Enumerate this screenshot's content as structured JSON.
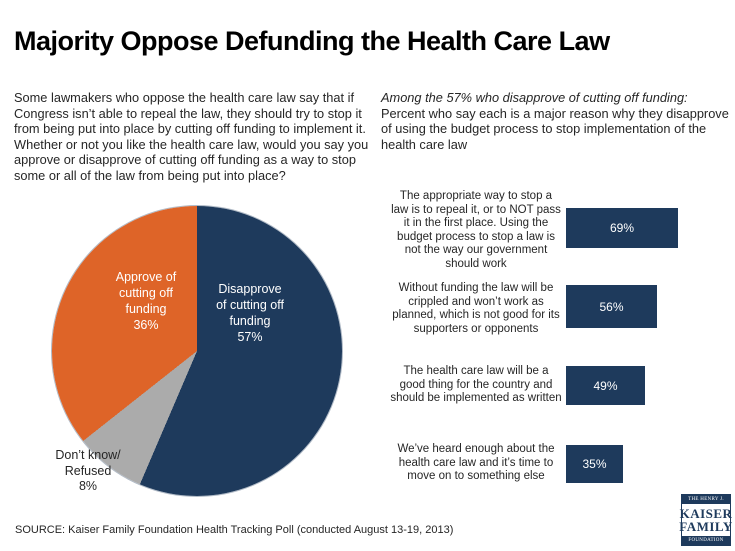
{
  "title": "Majority Oppose Defunding the Health Care Law",
  "question_text": "Some lawmakers who oppose the health care law say that if Congress isn’t able to repeal the law, they should try to stop it from being put into place by cutting off funding to implement it. Whether or not you like the health care law, would you say you approve or disapprove of cutting off funding as a way to stop some or all of the law from being put into place?",
  "subtitle": {
    "italic_lead": "Among the 57% who disapprove of cutting off funding:",
    "rest": " Percent who say each is a major reason why they disapprove of using the budget process to stop implementation of the health care law"
  },
  "pie_labels": {
    "approve": "Approve of\ncutting off\nfunding\n36%",
    "disapprove": "Disapprove\nof cutting off\nfunding\n57%",
    "dont_know": "Don’t know/\nRefused\n8%"
  },
  "reasons": [
    {
      "text": "The appropriate way to stop a law is to repeal it, or to NOT pass it in the first place. Using the budget process to stop a law is not the way our government should work",
      "value_label": "69%"
    },
    {
      "text": "Without funding the law will be crippled and won’t work as planned, which is not good for its supporters or opponents",
      "value_label": "56%"
    },
    {
      "text": "The health care law will be a good thing for the country and should be implemented as written",
      "value_label": "49%"
    },
    {
      "text": "We’ve heard enough about the health care law and it’s time to move on to something else",
      "value_label": "35%"
    }
  ],
  "source": "SOURCE: Kaiser Family Foundation Health Tracking Poll (conducted August 13-19, 2013)",
  "logo": {
    "line1": "THE HENRY J.",
    "line2": "KAISER",
    "line3": "FAMILY",
    "line4": "FOUNDATION"
  },
  "colors": {
    "navy": "#1E3A5C",
    "orange": "#DE6428",
    "gray": "#ABABAB",
    "white": "#FFFFFF"
  },
  "chart_data": [
    {
      "type": "pie",
      "title": "Approve/disapprove of cutting off funding for the health care law",
      "slices": [
        {
          "label": "Disapprove of cutting off funding",
          "value": 57,
          "color": "#1E3A5C"
        },
        {
          "label": "Don't know/Refused",
          "value": 8,
          "color": "#ABABAB"
        },
        {
          "label": "Approve of cutting off funding",
          "value": 36,
          "color": "#DE6428"
        }
      ],
      "start_angle_deg": 0,
      "direction": "clockwise",
      "legend_position": "inside-and-outside-labels"
    },
    {
      "type": "bar",
      "orientation": "horizontal",
      "title": "Major reasons for disapproving of using the budget process to stop the health care law",
      "categories": [
        "The appropriate way to stop a law is to repeal it, or to NOT pass it in the first place. Using the budget process to stop a law is not the way our government should work",
        "Without funding the law will be crippled and won't work as planned, which is not good for its supporters or opponents",
        "The health care law will be a good thing for the country and should be implemented as written",
        "We've heard enough about the health care law and it's time to move on to something else"
      ],
      "values": [
        69,
        56,
        49,
        35
      ],
      "unit": "%",
      "xlim": [
        0,
        100
      ],
      "bar_color": "#1E3A5C",
      "value_labels_inside": true,
      "grid": false
    }
  ]
}
